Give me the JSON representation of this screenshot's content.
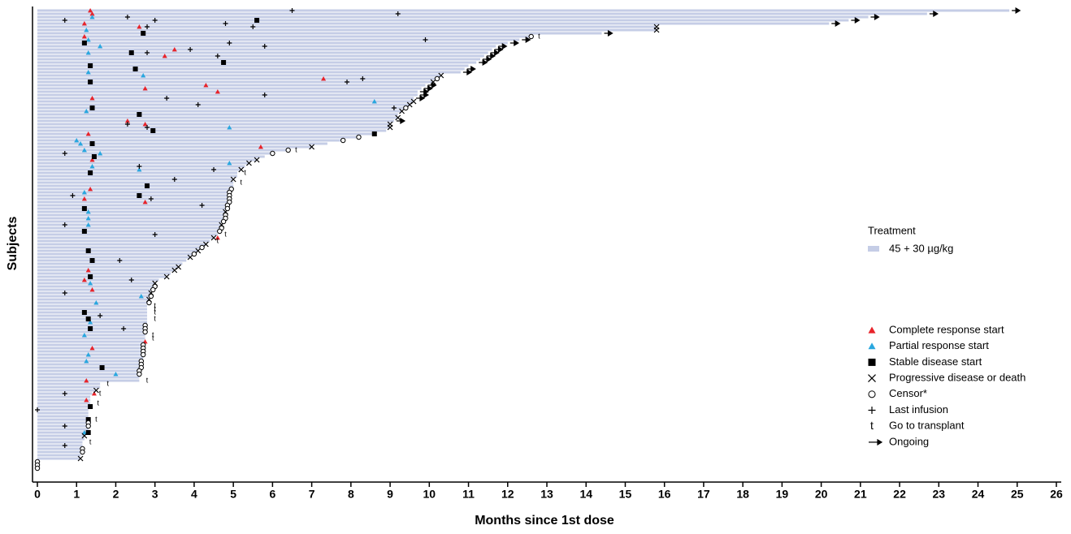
{
  "chart_data": {
    "type": "swimmer",
    "x_label": "Months since 1st dose",
    "y_label": "Subjects",
    "xlim": [
      0,
      26
    ],
    "xticks": [
      0,
      1,
      2,
      3,
      4,
      5,
      6,
      7,
      8,
      9,
      10,
      11,
      12,
      13,
      14,
      15,
      16,
      17,
      18,
      19,
      20,
      21,
      22,
      23,
      24,
      25,
      26
    ],
    "legend_title": "Treatment",
    "series": [
      {
        "name": "45 + 30 µg/kg",
        "color": "#c5cde6",
        "values": [
          24.8,
          22.7,
          21.2,
          20.7,
          20.2,
          15.8,
          15.8,
          14.4,
          12.6,
          12.3,
          12.0,
          11.7,
          11.6,
          11.5,
          11.4,
          11.3,
          11.2,
          11.0,
          10.9,
          10.8,
          10.3,
          10.2,
          10.1,
          9.9,
          9.8,
          9.7,
          9.7,
          9.6,
          9.6,
          9.5,
          9.4,
          9.3,
          9.2,
          9.2,
          9.1,
          9.0,
          9.0,
          8.9,
          8.6,
          8.2,
          7.8,
          7.4,
          7.0,
          6.4,
          6.0,
          5.8,
          5.6,
          5.4,
          5.3,
          5.2,
          5.1,
          5.1,
          5.0,
          5.0,
          5.0,
          4.95,
          4.9,
          4.9,
          4.9,
          4.9,
          4.85,
          4.85,
          4.8,
          4.8,
          4.8,
          4.75,
          4.7,
          4.7,
          4.65,
          4.6,
          4.5,
          4.4,
          4.3,
          4.2,
          4.1,
          4.0,
          3.9,
          3.8,
          3.7,
          3.6,
          3.5,
          3.4,
          3.3,
          3.1,
          3.0,
          3.0,
          2.95,
          2.9,
          2.9,
          2.85,
          2.85,
          2.8,
          2.8,
          2.8,
          2.8,
          2.8,
          2.8,
          2.75,
          2.75,
          2.75,
          2.75,
          2.75,
          2.75,
          2.7,
          2.7,
          2.7,
          2.7,
          2.7,
          2.65,
          2.65,
          2.65,
          2.6,
          2.6,
          2.6,
          2.6,
          1.6,
          1.6,
          1.5,
          1.4,
          1.35,
          1.35,
          1.35,
          1.35,
          1.3,
          1.3,
          1.3,
          1.3,
          1.3,
          1.3,
          1.3,
          1.25,
          1.2,
          1.2,
          1.15,
          1.15,
          1.15,
          1.1,
          1.1,
          1.1,
          0,
          0,
          0
        ]
      }
    ],
    "markers": [
      {
        "name": "Complete response start",
        "symbol": "triangle",
        "color": "#e8232a",
        "x": [
          1.35,
          1.4,
          1.2,
          2.6,
          1.2,
          3.25,
          3.5,
          7.3,
          2.75,
          4.3,
          4.6,
          1.4,
          2.3,
          2.75,
          1.3,
          5.7,
          1.4,
          1.2,
          2.75,
          1.35,
          4.6,
          1.3,
          1.2,
          1.4,
          2.75,
          1.4,
          1.25,
          1.45,
          1.25
        ],
        "subject": [
          0,
          1,
          4,
          5,
          8,
          14,
          12,
          21,
          24,
          23,
          25,
          27,
          34,
          35,
          38,
          42,
          46,
          58,
          59,
          55,
          70,
          80,
          83,
          86,
          102,
          104,
          114,
          118,
          120
        ]
      },
      {
        "name": "Partial response start",
        "symbol": "triangle",
        "color": "#29a7df",
        "x": [
          1.4,
          1.25,
          1.3,
          1.6,
          1.3,
          2.7,
          1.3,
          8.6,
          1.25,
          4.9,
          1.0,
          1.1,
          1.2,
          1.6,
          1.4,
          2.6,
          4.9,
          1.2,
          1.3,
          1.3,
          1.3,
          1.35,
          2.65,
          1.5,
          1.35,
          1.2,
          1.3,
          2.0,
          1.25,
          1.2
        ],
        "subject": [
          2,
          6,
          9,
          11,
          13,
          20,
          19,
          28,
          31,
          36,
          40,
          41,
          43,
          44,
          48,
          49,
          47,
          56,
          62,
          64,
          66,
          84,
          88,
          90,
          96,
          100,
          106,
          112,
          108,
          130
        ]
      },
      {
        "name": "Stable disease start",
        "symbol": "square",
        "color": "#000000",
        "x": [
          5.6,
          2.7,
          1.2,
          2.4,
          1.35,
          4.75,
          2.5,
          1.35,
          1.4,
          2.6,
          2.95,
          8.6,
          1.4,
          1.45,
          1.35,
          2.8,
          2.6,
          1.2,
          1.2,
          1.3,
          1.4,
          1.35,
          1.2,
          1.3,
          1.35,
          1.65,
          1.35,
          1.3,
          1.3
        ],
        "subject": [
          3,
          7,
          10,
          13,
          17,
          16,
          18,
          22,
          30,
          32,
          37,
          38,
          41,
          45,
          50,
          54,
          57,
          61,
          68,
          74,
          77,
          82,
          93,
          95,
          98,
          110,
          122,
          126,
          130
        ]
      },
      {
        "name": "Progressive disease or death",
        "symbol": "cross",
        "color": "#000000",
        "x": [
          15.8,
          15.8,
          10.3,
          10.1,
          9.6,
          9.5,
          9.3,
          9.2,
          9.0,
          9.0,
          7.0,
          5.6,
          5.4,
          5.2,
          5.0,
          4.8,
          4.7,
          4.5,
          4.3,
          4.1,
          3.9,
          3.6,
          3.5,
          3.3,
          3.0,
          2.9,
          2.85,
          1.5,
          1.2,
          1.1
        ],
        "subject": [
          5,
          6,
          20,
          22,
          28,
          29,
          31,
          33,
          35,
          36,
          42,
          46,
          47,
          49,
          52,
          62,
          66,
          70,
          72,
          74,
          76,
          79,
          80,
          82,
          84,
          87,
          89,
          117,
          131,
          138
        ]
      },
      {
        "name": "Censor*",
        "symbol": "circle",
        "color": "#000000",
        "x": [
          12.6,
          10.2,
          9.4,
          8.2,
          7.8,
          6.4,
          6.0,
          4.95,
          4.9,
          4.9,
          4.9,
          4.9,
          4.85,
          4.85,
          4.8,
          4.8,
          4.75,
          4.7,
          4.65,
          4.2,
          4.0,
          3.0,
          2.95,
          2.9,
          2.85,
          2.75,
          2.75,
          2.75,
          2.7,
          2.7,
          2.7,
          2.7,
          2.65,
          2.65,
          2.65,
          2.6,
          2.6,
          1.3,
          1.3,
          1.15,
          1.15,
          0,
          0,
          0
        ],
        "subject": [
          8,
          21,
          30,
          39,
          40,
          43,
          44,
          55,
          56,
          57,
          58,
          59,
          60,
          61,
          63,
          64,
          65,
          67,
          68,
          73,
          75,
          85,
          86,
          88,
          90,
          97,
          98,
          99,
          103,
          104,
          105,
          106,
          108,
          109,
          110,
          111,
          112,
          127,
          128,
          135,
          136,
          139,
          140,
          141
        ]
      },
      {
        "name": "Last infusion",
        "symbol": "plus",
        "color": "#000000",
        "x": [
          6.5,
          9.2,
          2.3,
          3.0,
          4.8,
          5.5,
          0.7,
          2.8,
          9.9,
          4.9,
          5.8,
          3.9,
          2.8,
          4.6,
          8.3,
          7.9,
          5.8,
          3.3,
          4.1,
          9.1,
          2.3,
          2.8,
          0.7,
          2.6,
          4.5,
          3.5,
          0.9,
          2.9,
          4.2,
          0.7,
          3.0,
          2.1,
          2.4,
          0.7,
          1.6,
          2.2,
          0.7,
          0.0,
          0.7,
          0.7
        ],
        "subject": [
          0,
          1,
          2,
          3,
          4,
          5,
          3,
          5,
          9,
          10,
          11,
          12,
          13,
          14,
          21,
          22,
          26,
          27,
          29,
          30,
          35,
          36,
          44,
          48,
          49,
          52,
          57,
          58,
          60,
          66,
          69,
          77,
          83,
          87,
          94,
          98,
          118,
          123,
          128,
          134
        ]
      },
      {
        "name": "Go to transplant",
        "symbol": "t",
        "color": "#000000",
        "x": [
          12.8,
          6.6,
          5.3,
          5.2,
          4.8,
          4.6,
          3.0,
          3.0,
          3.0,
          3.0,
          2.95,
          2.95,
          2.8,
          1.8,
          1.6,
          1.55,
          1.5,
          1.35
        ],
        "subject": [
          8,
          43,
          50,
          53,
          69,
          71,
          91,
          92,
          93,
          95,
          100,
          101,
          114,
          115,
          118,
          121,
          126,
          133
        ]
      },
      {
        "name": "Ongoing",
        "symbol": "arrow",
        "color": "#000000",
        "x": [
          24.8,
          22.7,
          21.2,
          20.7,
          20.2,
          14.4,
          12.3,
          12.0,
          11.7,
          11.6,
          11.5,
          11.4,
          11.3,
          11.2,
          10.9,
          10.8,
          9.9,
          9.8,
          9.7,
          9.7,
          9.6,
          9.1
        ],
        "subject": [
          0,
          1,
          2,
          3,
          4,
          7,
          9,
          10,
          11,
          12,
          13,
          14,
          15,
          16,
          18,
          19,
          23,
          24,
          25,
          26,
          27,
          34
        ]
      }
    ]
  }
}
